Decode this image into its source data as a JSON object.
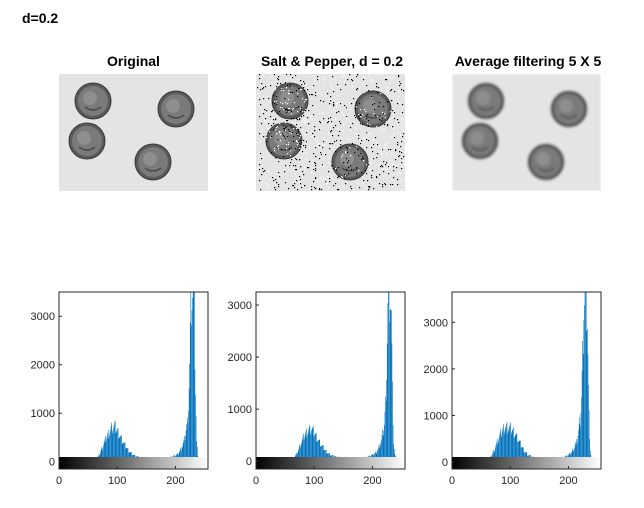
{
  "figure": {
    "label": "d=0.2"
  },
  "images": [
    {
      "title": "Original",
      "kind": "original"
    },
    {
      "title": "Salt & Pepper, d = 0.2",
      "kind": "noisy"
    },
    {
      "title": "Average filtering  5 X 5",
      "kind": "filtered"
    }
  ],
  "colors": {
    "bar": "#0072bd",
    "axis": "#262626",
    "coin": "#6e6e6e",
    "background": "#e6e6e6"
  },
  "chart_data": [
    {
      "type": "bar",
      "title": "",
      "xlabel": "",
      "ylabel": "",
      "xlim": [
        0,
        256
      ],
      "ylim": [
        -150,
        3500
      ],
      "x_ticks": [
        0,
        100,
        200
      ],
      "y_ticks": [
        0,
        1000,
        2000,
        3000
      ],
      "colorbar": "grayscale 0-255",
      "peaks": [
        {
          "x": [
            60,
            65,
            70,
            75,
            80,
            85,
            90,
            95,
            100,
            105,
            110,
            115,
            120,
            125,
            130,
            140,
            150,
            160,
            170,
            180,
            190,
            200,
            205,
            210,
            215,
            220,
            222,
            224,
            226,
            228,
            230,
            232,
            234,
            236,
            238,
            240,
            245,
            250
          ],
          "y": [
            20,
            80,
            180,
            320,
            480,
            600,
            700,
            740,
            640,
            520,
            400,
            300,
            220,
            160,
            120,
            90,
            70,
            60,
            60,
            70,
            90,
            130,
            180,
            280,
            450,
            800,
            1200,
            2000,
            3300,
            3500,
            3500,
            3000,
            1500,
            400,
            150,
            60,
            20,
            10
          ]
        }
      ]
    },
    {
      "type": "bar",
      "title": "",
      "xlabel": "",
      "ylabel": "",
      "xlim": [
        0,
        256
      ],
      "ylim": [
        -150,
        3250
      ],
      "x_ticks": [
        0,
        100,
        200
      ],
      "y_ticks": [
        0,
        1000,
        2000,
        3000
      ],
      "colorbar": "grayscale 0-255",
      "peaks": [
        {
          "x": [
            60,
            65,
            70,
            75,
            80,
            85,
            90,
            95,
            100,
            105,
            110,
            115,
            120,
            125,
            130,
            140,
            150,
            160,
            170,
            180,
            190,
            200,
            205,
            210,
            215,
            220,
            222,
            224,
            226,
            228,
            230,
            232,
            234,
            236,
            238,
            240,
            245,
            250
          ],
          "y": [
            20,
            70,
            160,
            290,
            430,
            540,
            600,
            620,
            540,
            440,
            340,
            260,
            190,
            140,
            110,
            80,
            60,
            55,
            55,
            60,
            80,
            120,
            160,
            250,
            400,
            700,
            1100,
            1800,
            3000,
            3250,
            3250,
            2800,
            1300,
            350,
            130,
            50,
            20,
            10
          ]
        }
      ]
    },
    {
      "type": "bar",
      "title": "",
      "xlabel": "",
      "ylabel": "",
      "xlim": [
        0,
        256
      ],
      "ylim": [
        -150,
        3650
      ],
      "x_ticks": [
        0,
        100,
        200
      ],
      "y_ticks": [
        0,
        1000,
        2000,
        3000
      ],
      "colorbar": "grayscale 0-255",
      "peaks": [
        {
          "x": [
            60,
            65,
            70,
            75,
            80,
            85,
            90,
            95,
            100,
            105,
            110,
            115,
            120,
            125,
            130,
            140,
            150,
            160,
            170,
            180,
            190,
            200,
            205,
            210,
            215,
            220,
            222,
            224,
            226,
            228,
            230,
            232,
            234,
            236,
            238,
            240,
            245,
            250
          ],
          "y": [
            20,
            90,
            200,
            360,
            520,
            660,
            760,
            740,
            720,
            660,
            560,
            440,
            320,
            220,
            150,
            100,
            80,
            70,
            70,
            80,
            100,
            150,
            210,
            320,
            500,
            900,
            1400,
            2300,
            3500,
            3650,
            3650,
            3200,
            1600,
            420,
            160,
            60,
            20,
            10
          ]
        }
      ]
    }
  ]
}
